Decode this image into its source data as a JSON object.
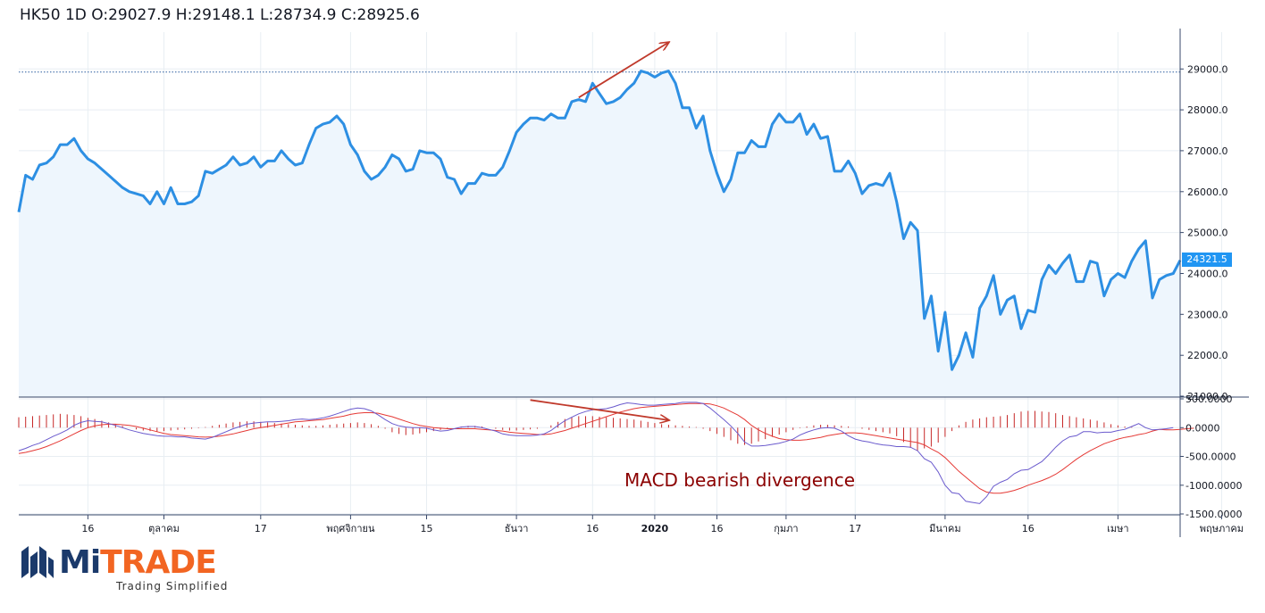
{
  "header": {
    "title": "HK50 1D O:29027.9 H:29148.1 L:28734.9 C:28925.6"
  },
  "annotation": {
    "text": "MACD bearish divergence",
    "color": "#8b0000"
  },
  "logo": {
    "brand_mi": "Mi",
    "brand_trade": "TRADE",
    "tagline": "Trading Simplified",
    "brand_color_primary": "#1b3a6b",
    "brand_color_accent": "#f26522"
  },
  "chart_data": [
    {
      "type": "line",
      "title": "HK50 1D",
      "series": [
        {
          "values": [
            25500,
            26400,
            26300,
            26650,
            26700,
            26850,
            27150,
            27150,
            27300,
            27000,
            26800,
            26700,
            26550,
            26400,
            26250,
            26100,
            26000,
            25950,
            25900,
            25700,
            26000,
            25700,
            26100,
            25700,
            25700,
            25750,
            25900,
            26500,
            26450,
            26550,
            26650,
            26850,
            26650,
            26700,
            26850,
            26600,
            26750,
            26750,
            27000,
            26800,
            26650,
            26700,
            27150,
            27550,
            27650,
            27700,
            27850,
            27650,
            27150,
            26900,
            26500,
            26300,
            26400,
            26600,
            26900,
            26800,
            26500,
            26550,
            27000,
            26950,
            26950,
            26800,
            26350,
            26300,
            25950,
            26200,
            26200,
            26450,
            26400,
            26400,
            26600,
            27000,
            27450,
            27650,
            27800,
            27800,
            27750,
            27900,
            27800,
            27800,
            28200,
            28250,
            28200,
            28650,
            28400,
            28150,
            28200,
            28300,
            28500,
            28650,
            28950,
            28900,
            28800,
            28900,
            28950,
            28650,
            28050,
            28050,
            27550,
            27850,
            27000,
            26450,
            26000,
            26300,
            26950,
            26950,
            27250,
            27100,
            27100,
            27650,
            27900,
            27700,
            27700,
            27900,
            27400,
            27650,
            27300,
            27350,
            26500,
            26500,
            26750,
            26450,
            25950,
            26150,
            26200,
            26150,
            26450,
            25750,
            24850,
            25250,
            25050,
            22900,
            23450,
            22100,
            23050,
            21650,
            22000,
            22550,
            21950,
            23150,
            23450,
            23950,
            23000,
            23350,
            23450,
            22650,
            23100,
            23050,
            23850,
            24200,
            24000,
            24250,
            24450,
            23800,
            23800,
            24300,
            24250,
            23450,
            23850,
            24000,
            23900,
            24300,
            24600,
            24800,
            23400,
            23850,
            23950,
            24000,
            24321.5
          ],
          "color": "#2d8fe3"
        }
      ],
      "last_price_label": "24321.5",
      "reference_line_value": 28925.6,
      "ylim": [
        21000,
        29900
      ],
      "y_ticks": [
        "29000.0",
        "28000.0",
        "27000.0",
        "26000.0",
        "25000.0",
        "24000.0",
        "23000.0",
        "22000.0",
        "21000.0"
      ],
      "x_tick_labels": [
        "16",
        "ตุลาคม",
        "17",
        "พฤศจิกายน",
        "15",
        "ธันวา",
        "16",
        "2020",
        "16",
        "กุมภา",
        "17",
        "มีนาคม",
        "16",
        "เมษา",
        "พฤษภาคม"
      ],
      "x_tick_bold": "2020",
      "annotation_arrow": {
        "from": [
          81,
          28300
        ],
        "to": [
          94,
          29650
        ],
        "color": "#c0392b"
      },
      "grid": true,
      "colors": {
        "line": "#2d8fe3",
        "area": "#eef6fd",
        "grid": "#e8eef3",
        "price_tag": "#2196f3"
      }
    },
    {
      "type": "line",
      "title": "MACD",
      "series": [
        {
          "name": "MACD",
          "color": "#6a5acd",
          "values": [
            -400,
            -360,
            -310,
            -270,
            -210,
            -150,
            -100,
            -40,
            40,
            90,
            120,
            110,
            100,
            70,
            40,
            0,
            -40,
            -70,
            -100,
            -120,
            -140,
            -150,
            -150,
            -160,
            -160,
            -180,
            -190,
            -200,
            -170,
            -120,
            -70,
            -20,
            20,
            60,
            80,
            90,
            100,
            100,
            110,
            120,
            140,
            150,
            140,
            150,
            170,
            200,
            240,
            280,
            320,
            340,
            330,
            290,
            220,
            140,
            70,
            30,
            10,
            0,
            0,
            -10,
            -40,
            -60,
            -50,
            -20,
            10,
            20,
            20,
            0,
            -30,
            -60,
            -110,
            -130,
            -140,
            -140,
            -140,
            -130,
            -110,
            -50,
            40,
            120,
            180,
            240,
            280,
            310,
            320,
            330,
            360,
            400,
            430,
            420,
            400,
            390,
            390,
            400,
            410,
            420,
            440,
            440,
            440,
            420,
            340,
            240,
            140,
            30,
            -100,
            -250,
            -320,
            -320,
            -310,
            -290,
            -270,
            -240,
            -200,
            -130,
            -80,
            -40,
            -10,
            0,
            -10,
            -60,
            -140,
            -200,
            -230,
            -250,
            -280,
            -300,
            -310,
            -330,
            -330,
            -340,
            -400,
            -540,
            -600,
            -770,
            -1000,
            -1130,
            -1150,
            -1280,
            -1300,
            -1320,
            -1200,
            -1020,
            -950,
            -900,
            -800,
            -740,
            -730,
            -660,
            -590,
            -470,
            -340,
            -230,
            -160,
            -140,
            -70,
            -70,
            -90,
            -80,
            -80,
            -50,
            -30,
            20,
            70,
            0,
            -40,
            -30,
            -20,
            0
          ]
        },
        {
          "name": "Signal",
          "color": "#e53935",
          "values": [
            -450,
            -430,
            -400,
            -370,
            -330,
            -280,
            -230,
            -170,
            -110,
            -50,
            0,
            30,
            50,
            60,
            60,
            50,
            40,
            20,
            -10,
            -40,
            -70,
            -100,
            -120,
            -130,
            -140,
            -150,
            -160,
            -165,
            -160,
            -150,
            -130,
            -110,
            -80,
            -50,
            -20,
            0,
            20,
            40,
            60,
            80,
            100,
            110,
            120,
            130,
            140,
            160,
            180,
            200,
            230,
            250,
            260,
            260,
            250,
            220,
            190,
            150,
            110,
            70,
            40,
            20,
            0,
            -10,
            -20,
            -20,
            -20,
            -20,
            -20,
            -30,
            -40,
            -50,
            -60,
            -80,
            -90,
            -100,
            -110,
            -120,
            -120,
            -110,
            -80,
            -50,
            -10,
            30,
            70,
            110,
            150,
            190,
            230,
            270,
            300,
            330,
            350,
            360,
            370,
            380,
            390,
            400,
            410,
            420,
            420,
            420,
            410,
            380,
            340,
            280,
            220,
            140,
            40,
            -40,
            -100,
            -150,
            -190,
            -210,
            -220,
            -220,
            -210,
            -190,
            -170,
            -140,
            -120,
            -100,
            -90,
            -90,
            -100,
            -120,
            -140,
            -160,
            -180,
            -200,
            -220,
            -240,
            -260,
            -300,
            -370,
            -430,
            -520,
            -640,
            -760,
            -860,
            -960,
            -1060,
            -1120,
            -1140,
            -1140,
            -1120,
            -1090,
            -1050,
            -1000,
            -960,
            -920,
            -870,
            -810,
            -730,
            -640,
            -550,
            -470,
            -400,
            -340,
            -280,
            -240,
            -200,
            -170,
            -150,
            -120,
            -100,
            -60,
            -30,
            -40,
            -40,
            -30,
            -20,
            -10
          ]
        },
        {
          "name": "Histogram",
          "color": "#c62828",
          "values": [
            180,
            190,
            200,
            210,
            220,
            230,
            240,
            230,
            220,
            200,
            170,
            150,
            120,
            90,
            60,
            30,
            0,
            -30,
            -50,
            -60,
            -70,
            -60,
            -50,
            -40,
            -30,
            -20,
            -10,
            10,
            30,
            50,
            70,
            90,
            100,
            110,
            110,
            100,
            90,
            80,
            70,
            60,
            50,
            40,
            30,
            30,
            40,
            50,
            60,
            70,
            80,
            90,
            80,
            60,
            30,
            -20,
            -80,
            -110,
            -130,
            -120,
            -100,
            -80,
            -60,
            -40,
            -20,
            0,
            20,
            30,
            30,
            20,
            0,
            -20,
            -40,
            -50,
            -50,
            -40,
            -30,
            -20,
            0,
            40,
            100,
            150,
            180,
            200,
            200,
            200,
            190,
            180,
            170,
            160,
            150,
            140,
            120,
            100,
            80,
            60,
            50,
            40,
            30,
            20,
            10,
            -20,
            -60,
            -110,
            -160,
            -220,
            -280,
            -300,
            -280,
            -240,
            -200,
            -160,
            -120,
            -80,
            -40,
            -10,
            20,
            40,
            50,
            50,
            40,
            30,
            20,
            0,
            -20,
            -40,
            -60,
            -80,
            -100,
            -150,
            -250,
            -350,
            -400,
            -360,
            -330,
            -260,
            -160,
            -60,
            40,
            100,
            140,
            160,
            180,
            190,
            200,
            220,
            250,
            280,
            290,
            290,
            280,
            270,
            250,
            220,
            200,
            180,
            160,
            140,
            120,
            90,
            60,
            40,
            20,
            10,
            0,
            0,
            0
          ]
        }
      ],
      "ylim": [
        -1500,
        500
      ],
      "y_ticks": [
        "500.0000",
        "0.0000",
        "-500.0000",
        "-1000.0000",
        "-1500.0000"
      ],
      "annotation_arrow": {
        "from": [
          74,
          480
        ],
        "to": [
          94,
          130
        ],
        "color": "#c0392b"
      }
    }
  ]
}
